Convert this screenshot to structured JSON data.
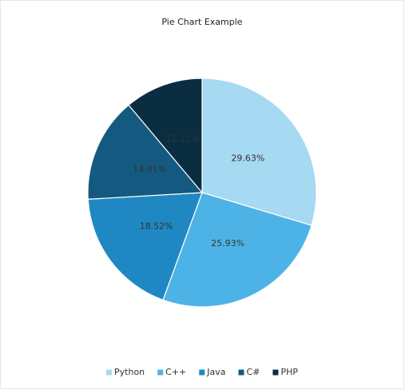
{
  "chart_data": {
    "type": "pie",
    "title": "Pie Chart Example",
    "categories": [
      "Python",
      "C++",
      "Java",
      "C#",
      "PHP"
    ],
    "values": [
      29.63,
      25.93,
      18.52,
      14.81,
      11.11
    ],
    "value_labels": [
      "29.63%",
      "25.93%",
      "18.52%",
      "14.81%",
      "11.11%"
    ],
    "colors": [
      "#a6d9f2",
      "#4db3e6",
      "#1f88c2",
      "#145a80",
      "#0b2d42"
    ],
    "legend": "bottom"
  }
}
